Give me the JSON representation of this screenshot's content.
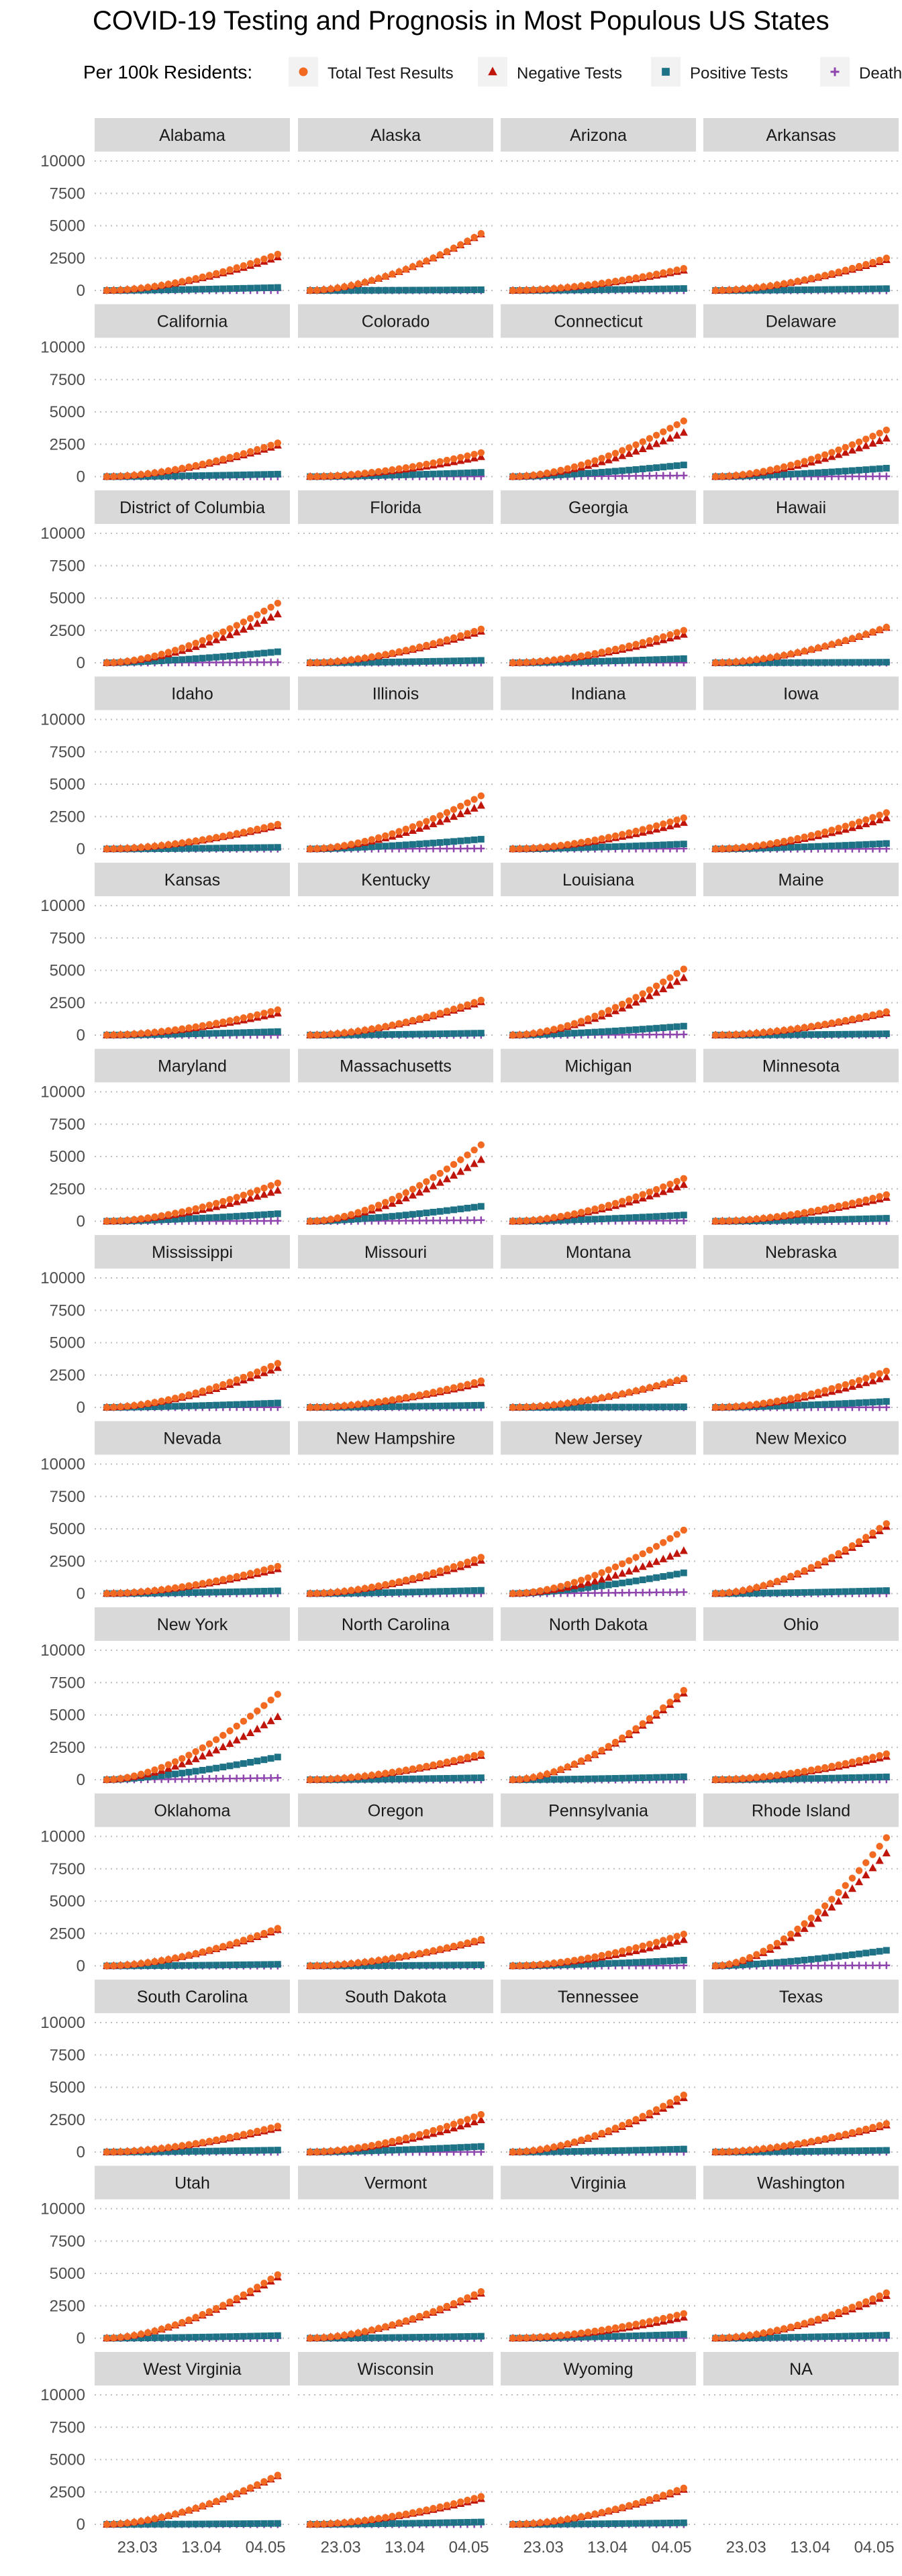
{
  "title": "COVID-19 Testing and Prognosis in Most Populous US States",
  "legend": {
    "title": "Per 100k Residents:",
    "items": [
      {
        "label": "Total Test Results",
        "color": "#f26a21",
        "shape": "circle"
      },
      {
        "label": "Negative Tests",
        "color": "#c0150b",
        "shape": "triangle"
      },
      {
        "label": "Positive Tests",
        "color": "#1e7286",
        "shape": "square"
      },
      {
        "label": "Deaths",
        "color": "#8e44ad",
        "shape": "plus"
      }
    ]
  },
  "chart_data": {
    "type": "scatter",
    "facet_layout": "4 columns x 13 rows",
    "x_ticks": [
      "23.03",
      "13.04",
      "04.05"
    ],
    "y_ticks": [
      "0",
      "2500",
      "5000",
      "7500",
      "10000"
    ],
    "ylim": [
      0,
      10000
    ],
    "grid": "horizontal dotted",
    "legend_position": "top",
    "x_domain": [
      "2020-03-09",
      "2020-05-12"
    ],
    "x_tick_dates": [
      "2020-03-23",
      "2020-04-13",
      "2020-05-04"
    ],
    "series_names": [
      "Total Test Results",
      "Negative Tests",
      "Positive Tests",
      "Deaths"
    ],
    "panels": [
      {
        "name": "Alabama",
        "total": 2800,
        "positive": 230,
        "deaths": 15
      },
      {
        "name": "Alaska",
        "total": 4400,
        "positive": 55,
        "deaths": 3
      },
      {
        "name": "Arizona",
        "total": 1700,
        "positive": 150,
        "deaths": 8
      },
      {
        "name": "Arkansas",
        "total": 2500,
        "positive": 140,
        "deaths": 3
      },
      {
        "name": "California",
        "total": 2600,
        "positive": 190,
        "deaths": 8
      },
      {
        "name": "Colorado",
        "total": 1850,
        "positive": 330,
        "deaths": 18
      },
      {
        "name": "Connecticut",
        "total": 4300,
        "positive": 900,
        "deaths": 85
      },
      {
        "name": "Delaware",
        "total": 3600,
        "positive": 650,
        "deaths": 25
      },
      {
        "name": "District of Columbia",
        "total": 4600,
        "positive": 850,
        "deaths": 45
      },
      {
        "name": "Florida",
        "total": 2600,
        "positive": 185,
        "deaths": 8
      },
      {
        "name": "Georgia",
        "total": 2500,
        "positive": 320,
        "deaths": 14
      },
      {
        "name": "Hawaii",
        "total": 2750,
        "positive": 45,
        "deaths": 2
      },
      {
        "name": "Idaho",
        "total": 1900,
        "positive": 120,
        "deaths": 4
      },
      {
        "name": "Illinois",
        "total": 4100,
        "positive": 750,
        "deaths": 33
      },
      {
        "name": "Indiana",
        "total": 2400,
        "positive": 380,
        "deaths": 23
      },
      {
        "name": "Iowa",
        "total": 2800,
        "positive": 420,
        "deaths": 10
      },
      {
        "name": "Kansas",
        "total": 1950,
        "positive": 270,
        "deaths": 6
      },
      {
        "name": "Kentucky",
        "total": 2700,
        "positive": 150,
        "deaths": 7
      },
      {
        "name": "Louisiana",
        "total": 5100,
        "positive": 690,
        "deaths": 50
      },
      {
        "name": "Maine",
        "total": 1800,
        "positive": 100,
        "deaths": 5
      },
      {
        "name": "Maryland",
        "total": 2950,
        "positive": 580,
        "deaths": 30
      },
      {
        "name": "Massachusetts",
        "total": 5900,
        "positive": 1150,
        "deaths": 85
      },
      {
        "name": "Michigan",
        "total": 3300,
        "positive": 480,
        "deaths": 47
      },
      {
        "name": "Minnesota",
        "total": 2050,
        "positive": 230,
        "deaths": 11
      },
      {
        "name": "Mississippi",
        "total": 3400,
        "positive": 340,
        "deaths": 15
      },
      {
        "name": "Missouri",
        "total": 2050,
        "positive": 170,
        "deaths": 8
      },
      {
        "name": "Montana",
        "total": 2250,
        "positive": 45,
        "deaths": 2
      },
      {
        "name": "Nebraska",
        "total": 2800,
        "positive": 460,
        "deaths": 6
      },
      {
        "name": "Nevada",
        "total": 2100,
        "positive": 210,
        "deaths": 10
      },
      {
        "name": "New Hampshire",
        "total": 2800,
        "positive": 250,
        "deaths": 12
      },
      {
        "name": "New Jersey",
        "total": 4900,
        "positive": 1600,
        "deaths": 110
      },
      {
        "name": "New Mexico",
        "total": 5400,
        "positive": 230,
        "deaths": 9
      },
      {
        "name": "New York",
        "total": 6600,
        "positive": 1750,
        "deaths": 140
      },
      {
        "name": "North Carolina",
        "total": 2000,
        "positive": 150,
        "deaths": 6
      },
      {
        "name": "North Dakota",
        "total": 6900,
        "positive": 230,
        "deaths": 4
      },
      {
        "name": "Ohio",
        "total": 2000,
        "positive": 220,
        "deaths": 12
      },
      {
        "name": "Oklahoma",
        "total": 2900,
        "positive": 120,
        "deaths": 7
      },
      {
        "name": "Oregon",
        "total": 2050,
        "positive": 80,
        "deaths": 3
      },
      {
        "name": "Pennsylvania",
        "total": 2450,
        "positive": 440,
        "deaths": 30
      },
      {
        "name": "Rhode Island",
        "total": 9900,
        "positive": 1200,
        "deaths": 40
      },
      {
        "name": "South Carolina",
        "total": 2000,
        "positive": 150,
        "deaths": 7
      },
      {
        "name": "South Dakota",
        "total": 2900,
        "positive": 430,
        "deaths": 4
      },
      {
        "name": "Tennessee",
        "total": 4400,
        "positive": 230,
        "deaths": 4
      },
      {
        "name": "Texas",
        "total": 2200,
        "positive": 130,
        "deaths": 4
      },
      {
        "name": "Utah",
        "total": 4900,
        "positive": 200,
        "deaths": 2
      },
      {
        "name": "Vermont",
        "total": 3600,
        "positive": 150,
        "deaths": 8
      },
      {
        "name": "Virginia",
        "total": 1900,
        "positive": 300,
        "deaths": 9
      },
      {
        "name": "Washington",
        "total": 3500,
        "positive": 230,
        "deaths": 12
      },
      {
        "name": "West Virginia",
        "total": 3800,
        "positive": 70,
        "deaths": 3
      },
      {
        "name": "Wisconsin",
        "total": 2150,
        "positive": 180,
        "deaths": 7
      },
      {
        "name": "Wyoming",
        "total": 2800,
        "positive": 120,
        "deaths": 1
      },
      {
        "name": "NA",
        "total": null,
        "positive": null,
        "deaths": null
      }
    ]
  }
}
